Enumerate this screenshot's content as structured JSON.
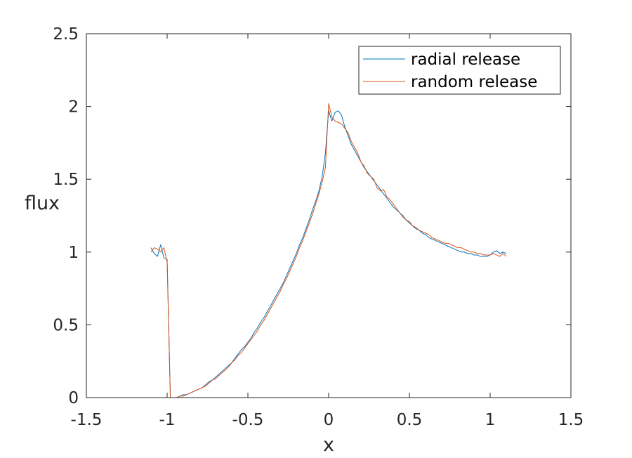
{
  "chart_data": {
    "type": "line",
    "xlabel": "x",
    "ylabel": "flux",
    "xlim": [
      -1.5,
      1.5
    ],
    "ylim": [
      0,
      2.5
    ],
    "xticks": [
      -1.5,
      -1,
      -0.5,
      0,
      0.5,
      1,
      1.5
    ],
    "xtick_labels": [
      "-1.5",
      "-1",
      "-0.5",
      "0",
      "0.5",
      "1",
      "1.5"
    ],
    "yticks": [
      0,
      0.5,
      1,
      1.5,
      2,
      2.5
    ],
    "ytick_labels": [
      "0",
      "0.5",
      "1",
      "1.5",
      "2",
      "2.5"
    ],
    "grid": false,
    "box": true,
    "legend_position": "top-right",
    "series": [
      {
        "name": "radial release",
        "color": "#0072BD",
        "x": [
          -1.1,
          -1.08,
          -1.06,
          -1.04,
          -1.02,
          -1.0,
          -0.98,
          -0.96,
          -0.94,
          -0.92,
          -0.9,
          -0.88,
          -0.86,
          -0.84,
          -0.82,
          -0.8,
          -0.78,
          -0.76,
          -0.74,
          -0.72,
          -0.7,
          -0.68,
          -0.66,
          -0.64,
          -0.62,
          -0.6,
          -0.58,
          -0.56,
          -0.54,
          -0.52,
          -0.5,
          -0.48,
          -0.46,
          -0.44,
          -0.42,
          -0.4,
          -0.38,
          -0.36,
          -0.34,
          -0.32,
          -0.3,
          -0.28,
          -0.26,
          -0.24,
          -0.22,
          -0.2,
          -0.18,
          -0.16,
          -0.14,
          -0.12,
          -0.1,
          -0.08,
          -0.06,
          -0.04,
          -0.02,
          0.0,
          0.02,
          0.04,
          0.06,
          0.08,
          0.1,
          0.12,
          0.14,
          0.16,
          0.18,
          0.2,
          0.22,
          0.24,
          0.26,
          0.28,
          0.3,
          0.32,
          0.34,
          0.36,
          0.38,
          0.4,
          0.42,
          0.44,
          0.46,
          0.48,
          0.5,
          0.52,
          0.54,
          0.56,
          0.58,
          0.6,
          0.62,
          0.64,
          0.66,
          0.68,
          0.7,
          0.72,
          0.74,
          0.76,
          0.78,
          0.8,
          0.82,
          0.84,
          0.86,
          0.88,
          0.9,
          0.92,
          0.94,
          0.96,
          0.98,
          1.0,
          1.02,
          1.04,
          1.06,
          1.08,
          1.1
        ],
        "y": [
          1.03,
          0.99,
          0.97,
          1.05,
          0.96,
          0.95,
          0.0,
          0.0,
          0.0,
          0.01,
          0.02,
          0.02,
          0.03,
          0.04,
          0.05,
          0.06,
          0.07,
          0.09,
          0.11,
          0.12,
          0.14,
          0.16,
          0.18,
          0.2,
          0.22,
          0.24,
          0.27,
          0.3,
          0.33,
          0.35,
          0.38,
          0.41,
          0.45,
          0.48,
          0.52,
          0.55,
          0.59,
          0.63,
          0.67,
          0.71,
          0.75,
          0.79,
          0.84,
          0.89,
          0.94,
          0.99,
          1.05,
          1.1,
          1.16,
          1.22,
          1.29,
          1.35,
          1.42,
          1.52,
          1.68,
          1.97,
          1.9,
          1.96,
          1.97,
          1.94,
          1.86,
          1.8,
          1.74,
          1.7,
          1.66,
          1.62,
          1.58,
          1.55,
          1.52,
          1.49,
          1.46,
          1.43,
          1.4,
          1.37,
          1.34,
          1.31,
          1.29,
          1.27,
          1.25,
          1.22,
          1.2,
          1.18,
          1.16,
          1.15,
          1.13,
          1.12,
          1.1,
          1.09,
          1.08,
          1.07,
          1.06,
          1.05,
          1.04,
          1.03,
          1.02,
          1.01,
          1.0,
          1.0,
          0.99,
          0.99,
          0.98,
          0.98,
          0.97,
          0.97,
          0.97,
          0.98,
          1.0,
          1.01,
          0.99,
          1.0,
          0.99
        ]
      },
      {
        "name": "random release",
        "color": "#D95319",
        "x": [
          -1.1,
          -1.08,
          -1.06,
          -1.04,
          -1.02,
          -1.0,
          -0.98,
          -0.96,
          -0.94,
          -0.92,
          -0.9,
          -0.88,
          -0.86,
          -0.84,
          -0.82,
          -0.8,
          -0.78,
          -0.76,
          -0.74,
          -0.72,
          -0.7,
          -0.68,
          -0.66,
          -0.64,
          -0.62,
          -0.6,
          -0.58,
          -0.56,
          -0.54,
          -0.52,
          -0.5,
          -0.48,
          -0.46,
          -0.44,
          -0.42,
          -0.4,
          -0.38,
          -0.36,
          -0.34,
          -0.32,
          -0.3,
          -0.28,
          -0.26,
          -0.24,
          -0.22,
          -0.2,
          -0.18,
          -0.16,
          -0.14,
          -0.12,
          -0.1,
          -0.08,
          -0.06,
          -0.04,
          -0.02,
          0.0,
          0.02,
          0.04,
          0.06,
          0.08,
          0.1,
          0.12,
          0.14,
          0.16,
          0.18,
          0.2,
          0.22,
          0.24,
          0.26,
          0.28,
          0.3,
          0.32,
          0.34,
          0.36,
          0.38,
          0.4,
          0.42,
          0.44,
          0.46,
          0.48,
          0.5,
          0.52,
          0.54,
          0.56,
          0.58,
          0.6,
          0.62,
          0.64,
          0.66,
          0.68,
          0.7,
          0.72,
          0.74,
          0.76,
          0.78,
          0.8,
          0.82,
          0.84,
          0.86,
          0.88,
          0.9,
          0.92,
          0.94,
          0.96,
          0.98,
          1.0,
          1.02,
          1.04,
          1.06,
          1.08,
          1.1
        ],
        "y": [
          1.0,
          1.03,
          1.02,
          1.0,
          1.03,
          0.93,
          0.0,
          0.0,
          0.0,
          0.01,
          0.01,
          0.02,
          0.03,
          0.04,
          0.05,
          0.06,
          0.07,
          0.08,
          0.1,
          0.12,
          0.13,
          0.15,
          0.17,
          0.19,
          0.21,
          0.24,
          0.26,
          0.29,
          0.31,
          0.34,
          0.37,
          0.4,
          0.43,
          0.46,
          0.5,
          0.53,
          0.57,
          0.61,
          0.65,
          0.69,
          0.73,
          0.78,
          0.82,
          0.87,
          0.92,
          0.97,
          1.03,
          1.08,
          1.14,
          1.2,
          1.26,
          1.33,
          1.4,
          1.48,
          1.58,
          2.02,
          1.93,
          1.9,
          1.89,
          1.88,
          1.85,
          1.82,
          1.76,
          1.72,
          1.68,
          1.62,
          1.59,
          1.54,
          1.52,
          1.5,
          1.44,
          1.42,
          1.43,
          1.38,
          1.36,
          1.33,
          1.3,
          1.27,
          1.24,
          1.22,
          1.21,
          1.18,
          1.17,
          1.15,
          1.14,
          1.13,
          1.12,
          1.1,
          1.09,
          1.08,
          1.07,
          1.06,
          1.06,
          1.05,
          1.04,
          1.03,
          1.03,
          1.02,
          1.01,
          1.0,
          1.0,
          0.99,
          0.99,
          0.98,
          0.98,
          0.98,
          0.99,
          0.98,
          0.97,
          0.99,
          0.97
        ]
      }
    ]
  }
}
